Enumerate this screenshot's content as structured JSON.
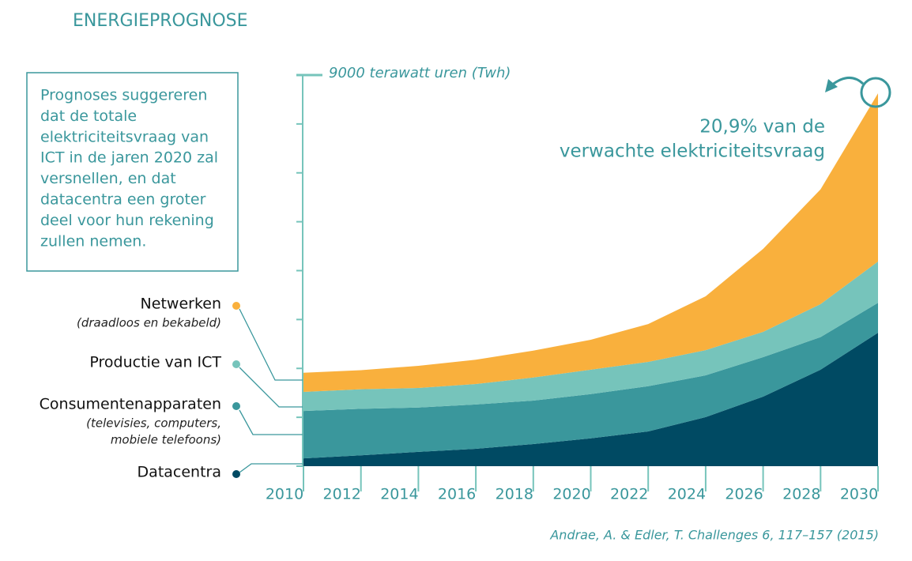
{
  "title": "ENERGIEPROGNOSE",
  "info_box": [
    "Prognoses suggereren",
    "dat de totale",
    "elektriciteitsvraag van",
    "ICT in de jaren 2020 zal",
    "versnellen, en dat",
    "datacentra een groter",
    "deel voor hun rekening",
    "zullen nemen."
  ],
  "chart_data": {
    "type": "stacked_area",
    "x": [
      2010,
      2012,
      2014,
      2016,
      2018,
      2020,
      2022,
      2024,
      2026,
      2028,
      2030
    ],
    "xlim": [
      2010,
      2030
    ],
    "xticks": [
      2010,
      2012,
      2014,
      2016,
      2018,
      2020,
      2022,
      2024,
      2026,
      2028,
      2030
    ],
    "ylim": [
      0,
      9000
    ],
    "yticks": [
      {
        "value": 0,
        "label": null
      },
      {
        "value": 1125,
        "label": null
      },
      {
        "value": 2250,
        "label": null
      },
      {
        "value": 3375,
        "label": null
      },
      {
        "value": 4500,
        "label": null
      },
      {
        "value": 5625,
        "label": null
      },
      {
        "value": 6750,
        "label": null
      },
      {
        "value": 7875,
        "label": null
      },
      {
        "value": 9000,
        "label": "9000 terawatt uren (Twh)"
      }
    ],
    "series": [
      {
        "name": "Datacentra",
        "color": "#004a63",
        "values": [
          180,
          250,
          330,
          400,
          510,
          640,
          800,
          1130,
          1600,
          2220,
          3070
        ]
      },
      {
        "name": "Consumentenapparaten",
        "note": [
          "(televisies, computers,",
          "mobiele telefoons)"
        ],
        "color": "#3a979c",
        "values": [
          1090,
          1070,
          1020,
          1020,
          1000,
          1020,
          1040,
          960,
          910,
          750,
          690
        ]
      },
      {
        "name": "Productie van ICT",
        "color": "#76c4bb",
        "values": [
          440,
          450,
          450,
          470,
          530,
          560,
          560,
          580,
          580,
          760,
          950
        ]
      },
      {
        "name": "Netwerken",
        "note": [
          "(draadloos en bekabeld)"
        ],
        "color": "#f9b03d",
        "values": [
          440,
          440,
          510,
          560,
          620,
          690,
          870,
          1240,
          1910,
          2640,
          3870
        ]
      }
    ],
    "annotation": [
      "20,9% van de",
      "verwachte elektriciteitsvraag"
    ],
    "source": "Andrae, A. & Edler, T. Challenges 6, 117–157 (2015)"
  }
}
